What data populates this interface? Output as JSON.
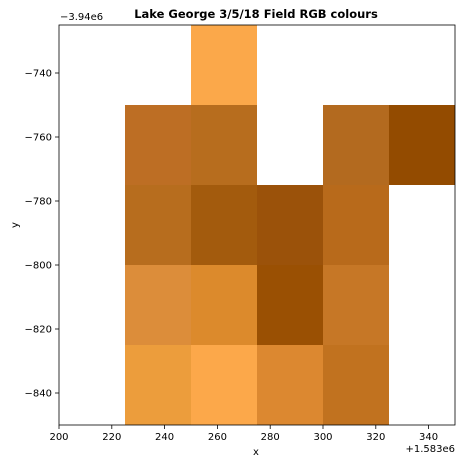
{
  "chart_data": {
    "type": "heatmap",
    "title": "Lake George 3/5/18 Field RGB colours",
    "xlabel": "x",
    "ylabel": "y",
    "x_offset_label": "+1.583e6",
    "y_offset_label": "−3.94e6",
    "xlim": [
      200,
      350
    ],
    "ylim": [
      -850,
      -725
    ],
    "x_ticks": [
      200,
      220,
      240,
      260,
      280,
      300,
      320,
      340
    ],
    "y_ticks": [
      -740,
      -760,
      -780,
      -800,
      -820,
      -840
    ],
    "grid": false,
    "cells": [
      {
        "x0": 250,
        "x1": 275,
        "y0": -750,
        "y1": -725,
        "color": "#fba84a"
      },
      {
        "x0": 225,
        "x1": 250,
        "y0": -775,
        "y1": -750,
        "color": "#bd6e24"
      },
      {
        "x0": 250,
        "x1": 275,
        "y0": -775,
        "y1": -750,
        "color": "#b76d1e"
      },
      {
        "x0": 300,
        "x1": 325,
        "y0": -775,
        "y1": -750,
        "color": "#b36a1f"
      },
      {
        "x0": 325,
        "x1": 350,
        "y0": -775,
        "y1": -750,
        "color": "#934b00"
      },
      {
        "x0": 225,
        "x1": 250,
        "y0": -800,
        "y1": -775,
        "color": "#b76d1e"
      },
      {
        "x0": 250,
        "x1": 275,
        "y0": -800,
        "y1": -775,
        "color": "#a35b0d"
      },
      {
        "x0": 275,
        "x1": 300,
        "y0": -800,
        "y1": -775,
        "color": "#9b520a"
      },
      {
        "x0": 300,
        "x1": 325,
        "y0": -800,
        "y1": -775,
        "color": "#b86a1b"
      },
      {
        "x0": 225,
        "x1": 250,
        "y0": -825,
        "y1": -800,
        "color": "#dc8d3a"
      },
      {
        "x0": 250,
        "x1": 275,
        "y0": -825,
        "y1": -800,
        "color": "#dc8a2c"
      },
      {
        "x0": 275,
        "x1": 300,
        "y0": -825,
        "y1": -800,
        "color": "#9a5003"
      },
      {
        "x0": 300,
        "x1": 325,
        "y0": -825,
        "y1": -800,
        "color": "#c67726"
      },
      {
        "x0": 225,
        "x1": 250,
        "y0": -850,
        "y1": -825,
        "color": "#ec9d3c"
      },
      {
        "x0": 250,
        "x1": 275,
        "y0": -850,
        "y1": -825,
        "color": "#fca84a"
      },
      {
        "x0": 275,
        "x1": 300,
        "y0": -850,
        "y1": -825,
        "color": "#dc8830"
      },
      {
        "x0": 300,
        "x1": 325,
        "y0": -850,
        "y1": -825,
        "color": "#c1721f"
      }
    ]
  }
}
